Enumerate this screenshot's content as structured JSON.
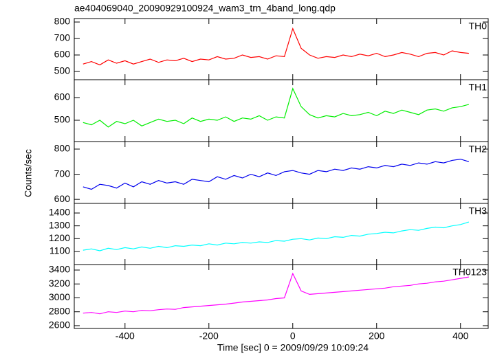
{
  "chart_data": {
    "type": "line",
    "title": "ae404069040_20090929100924_wam3_trn_4band_long.qdp",
    "x_label": "Time [sec] 0 = 2009/09/29 10:09:24",
    "y_label": "Counts/sec",
    "xlim": [
      -521,
      466
    ],
    "xticks": [
      -400,
      -200,
      0,
      200,
      400
    ],
    "x": [
      -500,
      -480,
      -460,
      -440,
      -420,
      -400,
      -380,
      -360,
      -340,
      -320,
      -300,
      -280,
      -260,
      -240,
      -220,
      -200,
      -180,
      -160,
      -140,
      -120,
      -100,
      -80,
      -60,
      -40,
      -20,
      0,
      20,
      40,
      60,
      80,
      100,
      120,
      140,
      160,
      180,
      200,
      220,
      240,
      260,
      280,
      300,
      320,
      340,
      360,
      380,
      400,
      420
    ],
    "series": [
      {
        "name": "TH0",
        "color": "#ff0000",
        "ylim": [
          450,
          821
        ],
        "yticks": [
          500,
          600,
          700,
          800
        ],
        "values": [
          545,
          560,
          540,
          570,
          550,
          565,
          545,
          560,
          575,
          555,
          570,
          565,
          580,
          560,
          575,
          570,
          590,
          575,
          580,
          600,
          585,
          590,
          575,
          595,
          590,
          760,
          640,
          600,
          580,
          590,
          585,
          600,
          590,
          605,
          595,
          610,
          590,
          600,
          615,
          605,
          590,
          610,
          615,
          600,
          625,
          615,
          610
        ]
      },
      {
        "name": "TH1",
        "color": "#00ee00",
        "ylim": [
          406,
          679
        ],
        "yticks": [
          500,
          600
        ],
        "values": [
          490,
          480,
          500,
          470,
          495,
          485,
          500,
          475,
          490,
          505,
          495,
          500,
          485,
          510,
          495,
          505,
          500,
          515,
          495,
          510,
          505,
          520,
          500,
          515,
          510,
          640,
          560,
          525,
          510,
          520,
          515,
          530,
          520,
          525,
          535,
          520,
          540,
          530,
          545,
          535,
          525,
          545,
          550,
          540,
          555,
          560,
          570
        ]
      },
      {
        "name": "TH2",
        "color": "#0000ee",
        "ylim": [
          584,
          830
        ],
        "yticks": [
          600,
          700,
          800
        ],
        "values": [
          650,
          640,
          660,
          655,
          645,
          665,
          650,
          670,
          660,
          675,
          665,
          670,
          660,
          680,
          675,
          670,
          690,
          680,
          695,
          685,
          700,
          690,
          705,
          695,
          710,
          715,
          705,
          700,
          715,
          710,
          720,
          715,
          725,
          720,
          730,
          725,
          735,
          730,
          740,
          735,
          745,
          740,
          750,
          745,
          755,
          760,
          750
        ]
      },
      {
        "name": "TH3",
        "color": "#00ffff",
        "ylim": [
          998,
          1475
        ],
        "yticks": [
          1100,
          1200,
          1300,
          1400
        ],
        "values": [
          1110,
          1120,
          1105,
          1125,
          1115,
          1130,
          1120,
          1135,
          1125,
          1140,
          1130,
          1145,
          1140,
          1150,
          1145,
          1160,
          1150,
          1165,
          1160,
          1170,
          1165,
          1175,
          1170,
          1185,
          1180,
          1195,
          1200,
          1190,
          1205,
          1200,
          1215,
          1210,
          1225,
          1220,
          1235,
          1240,
          1250,
          1245,
          1260,
          1270,
          1265,
          1280,
          1290,
          1285,
          1300,
          1310,
          1330
        ]
      },
      {
        "name": "TH0123",
        "color": "#ff00ff",
        "ylim": [
          2560,
          3479
        ],
        "yticks": [
          2600,
          2800,
          3000,
          3200,
          3400
        ],
        "values": [
          2780,
          2790,
          2770,
          2800,
          2790,
          2810,
          2800,
          2820,
          2815,
          2830,
          2840,
          2835,
          2860,
          2870,
          2880,
          2890,
          2900,
          2910,
          2925,
          2940,
          2950,
          2960,
          2970,
          2990,
          3000,
          3350,
          3100,
          3050,
          3060,
          3070,
          3080,
          3090,
          3100,
          3110,
          3120,
          3130,
          3140,
          3160,
          3170,
          3180,
          3200,
          3210,
          3230,
          3240,
          3260,
          3280,
          3300
        ]
      }
    ]
  }
}
